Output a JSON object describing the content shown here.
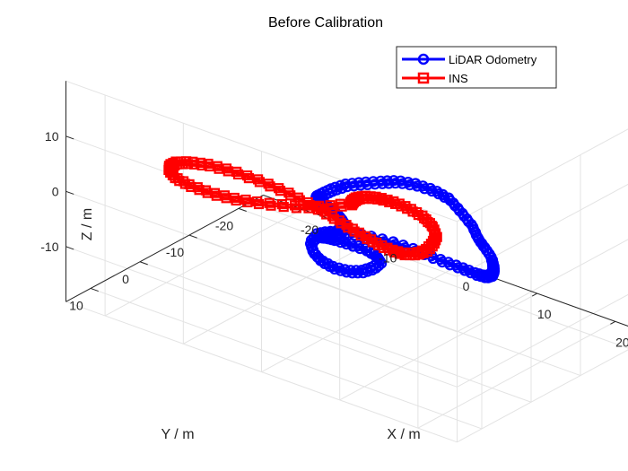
{
  "chart_data": {
    "type": "line3d",
    "title": "Before Calibration",
    "xlabel": "X / m",
    "ylabel": "Y / m",
    "zlabel": "Z / m",
    "xlim": [
      -25,
      25
    ],
    "ylim": [
      -25,
      15
    ],
    "zlim": [
      -20,
      20
    ],
    "xticks": [
      -20,
      -10,
      0,
      10,
      20
    ],
    "yticks": [
      10,
      0,
      -10,
      -20
    ],
    "zticks": [
      10,
      0,
      -10
    ],
    "xtick_labels": [
      "-20",
      "-10",
      "0",
      "10",
      "20"
    ],
    "ytick_labels": [
      "10",
      "0",
      "-10",
      "-20"
    ],
    "ztick_labels": [
      "10",
      "0",
      "-10"
    ],
    "grid": true,
    "legend_position": "top-right",
    "series": [
      {
        "name": "LiDAR Odometry",
        "color": "#0000ff",
        "marker": "circle",
        "x": [
          -1.2,
          -1.0,
          -1.5,
          -2.8,
          -4.5,
          -6.2,
          -7.8,
          -9.0,
          -9.8,
          -10.0,
          -9.8,
          -9.4,
          -8.5,
          -7.0,
          -5.2,
          -3.5,
          -1.0,
          2.0,
          5.0,
          8.5,
          12.0,
          15.0,
          17.5,
          19.5,
          21.0,
          22.0,
          22.4,
          22.0,
          20.5,
          18.0,
          15.0,
          11.5,
          8.0,
          4.5,
          2.0,
          0.5,
          -0.2,
          0.2,
          1.5,
          3.0,
          4.6,
          6.0,
          6.8,
          7.0,
          6.6,
          5.5,
          3.8,
          1.7,
          0.0,
          -0.8,
          -1.2
        ],
        "y": [
          1.2,
          -1.5,
          -4.0,
          -6.0,
          -7.7,
          -9.0,
          -10.2,
          -11.0,
          -11.6,
          -12.0,
          -13.2,
          -14.3,
          -15.5,
          -16.5,
          -17.4,
          -18.0,
          -17.8,
          -16.8,
          -15.0,
          -11.8,
          -8.5,
          -5.0,
          -2.5,
          -0.5,
          1.5,
          3.0,
          4.0,
          4.5,
          4.2,
          3.3,
          2.5,
          1.5,
          1.0,
          1.0,
          1.5,
          2.5,
          3.5,
          5.5,
          7.0,
          7.8,
          7.8,
          7.0,
          5.5,
          3.5,
          1.5,
          0.5,
          0.0,
          0.2,
          0.5,
          0.8,
          1.2
        ],
        "z": [
          -2.5,
          -3.0,
          -3.6,
          -4.2,
          -4.8,
          -5.2,
          -5.6,
          -5.9,
          -6.1,
          -6.2,
          -6.0,
          -5.6,
          -5.0,
          -4.4,
          -3.7,
          -3.0,
          -2.2,
          -1.3,
          -0.4,
          0.6,
          1.5,
          2.3,
          3.0,
          3.5,
          3.8,
          4.0,
          3.9,
          3.6,
          3.2,
          2.6,
          2.0,
          1.4,
          0.9,
          0.4,
          0.0,
          -0.3,
          -0.6,
          -0.9,
          -1.2,
          -1.6,
          -2.0,
          -2.4,
          -2.7,
          -2.9,
          -3.0,
          -3.0,
          -2.9,
          -2.8,
          -2.7,
          -2.6,
          -2.5
        ]
      },
      {
        "name": "INS",
        "color": "#ff0000",
        "marker": "square",
        "x": [
          0.0,
          -1.0,
          -3.0,
          -5.5,
          -8.0,
          -10.5,
          -13.0,
          -15.2,
          -16.8,
          -17.8,
          -18.2,
          -17.8,
          -16.6,
          -14.6,
          -11.8,
          -8.8,
          -5.8,
          -3.0,
          -0.5,
          1.8,
          3.8,
          5.6,
          7.0,
          8.0,
          8.4,
          8.2,
          7.6,
          6.4,
          4.8,
          3.0,
          1.5,
          0.2,
          -0.6,
          -0.8,
          -0.5,
          0.0
        ],
        "y": [
          -3.0,
          0.5,
          3.5,
          6.0,
          7.8,
          8.8,
          9.0,
          8.5,
          7.2,
          5.5,
          3.5,
          1.5,
          -0.5,
          -2.0,
          -3.0,
          -3.5,
          -3.6,
          -3.4,
          -3.0,
          -2.6,
          -2.3,
          -2.2,
          -2.6,
          -3.6,
          -5.0,
          -6.6,
          -8.2,
          -9.4,
          -10.0,
          -10.0,
          -9.4,
          -8.4,
          -7.0,
          -5.5,
          -4.2,
          -3.0
        ],
        "z": [
          2.0,
          2.6,
          3.1,
          3.6,
          4.0,
          4.3,
          4.5,
          4.5,
          4.3,
          3.9,
          3.3,
          2.6,
          1.8,
          1.0,
          0.2,
          -0.5,
          -1.2,
          -1.8,
          -2.3,
          -2.7,
          -3.0,
          -3.2,
          -3.3,
          -3.3,
          -3.1,
          -2.8,
          -2.4,
          -1.9,
          -1.3,
          -0.7,
          -0.1,
          0.5,
          1.0,
          1.4,
          1.7,
          2.0
        ]
      }
    ]
  }
}
